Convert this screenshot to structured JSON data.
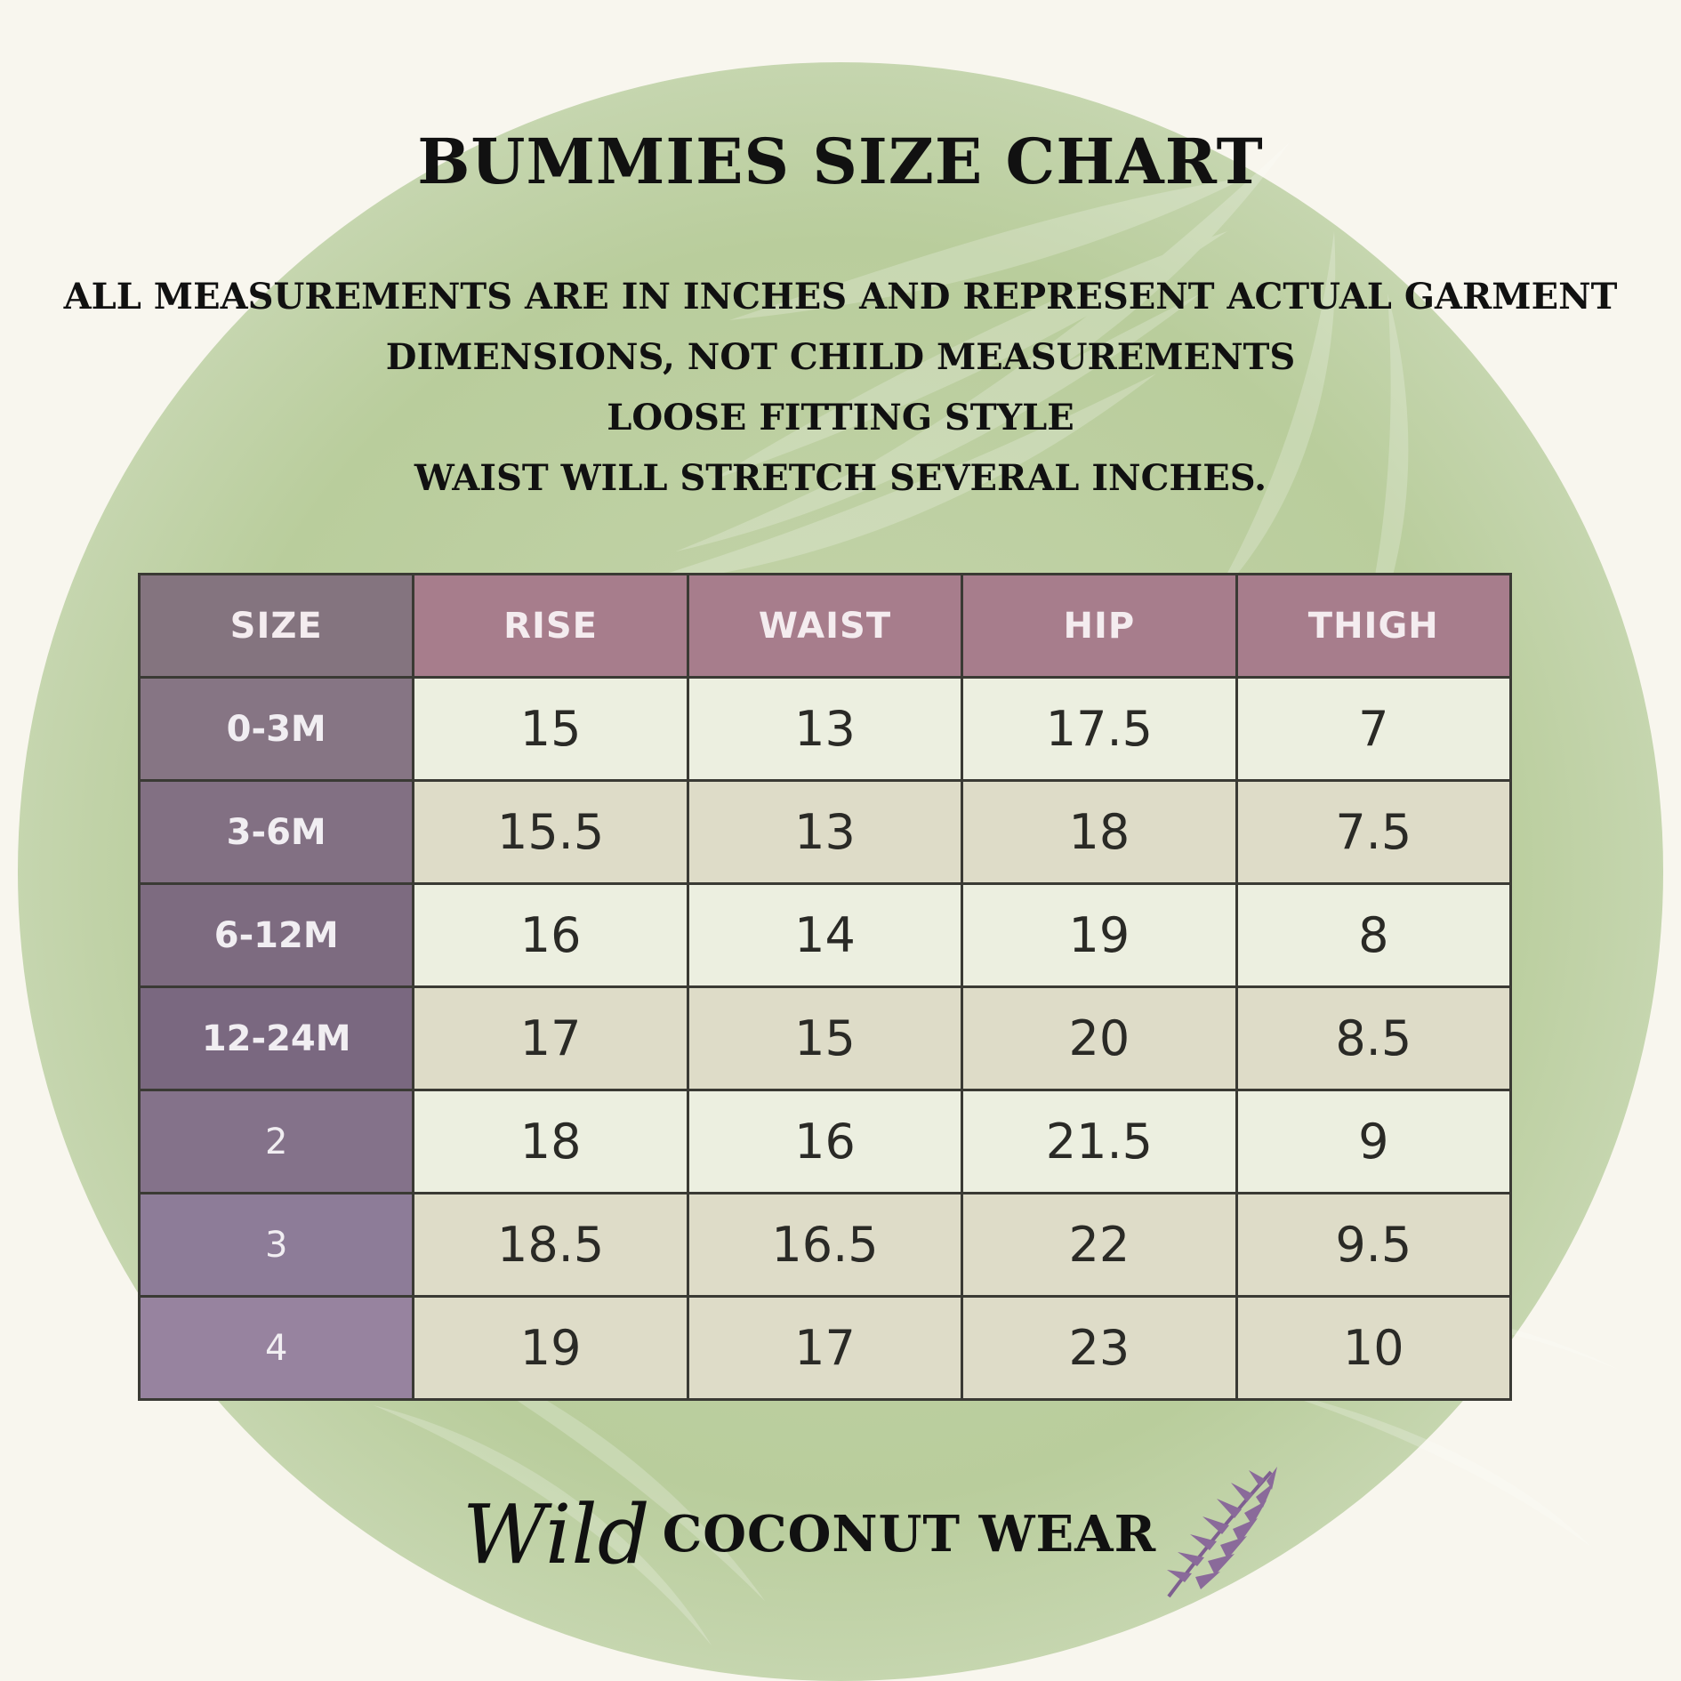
{
  "title": "BUMMIES SIZE CHART",
  "notes": [
    "ALL MEASUREMENTS ARE IN INCHES AND REPRESENT ACTUAL GARMENT",
    "DIMENSIONS, NOT CHILD MEASUREMENTS",
    "LOOSE FITTING STYLE",
    "WAIST WILL STRETCH SEVERAL INCHES."
  ],
  "table": {
    "headers": [
      "SIZE",
      "RISE",
      "WAIST",
      "HIP",
      "THIGH"
    ],
    "rows": [
      [
        "0-3M",
        "15",
        "13",
        "17.5",
        "7"
      ],
      [
        "3-6M",
        "15.5",
        "13",
        "18",
        "7.5"
      ],
      [
        "6-12M",
        "16",
        "14",
        "19",
        "8"
      ],
      [
        "12-24M",
        "17",
        "15",
        "20",
        "8.5"
      ],
      [
        "2",
        "18",
        "16",
        "21.5",
        "9"
      ],
      [
        "3",
        "18.5",
        "16.5",
        "22",
        "9.5"
      ],
      [
        "4",
        "19",
        "17",
        "23",
        "10"
      ]
    ]
  },
  "brand": {
    "script": "Wild",
    "name": "COCONUT WEAR",
    "icon": "palm-leaf-icon"
  },
  "colors": {
    "background": "#f8f6ee",
    "blob": "#bccf9f",
    "header_size": "#84747f",
    "header_measure": "#a77d8c",
    "row_light": "#ecefe0",
    "row_dark": "#dedcc8",
    "leaf": "#8a6a9a"
  }
}
